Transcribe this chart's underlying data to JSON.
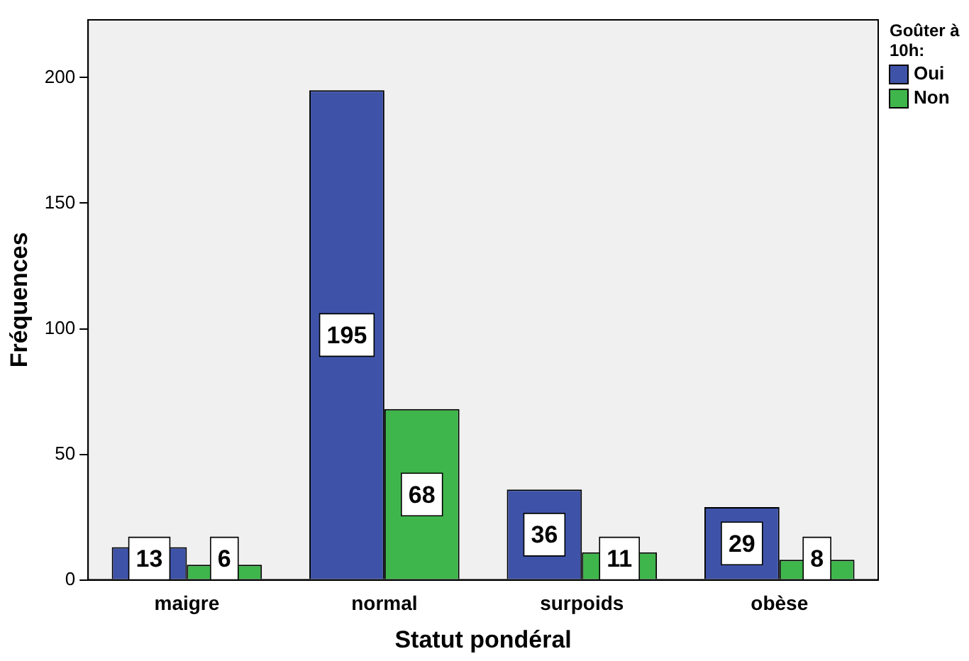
{
  "chart_data": {
    "type": "bar",
    "xlabel": "Statut pondéral",
    "ylabel": "Fréquences",
    "legend_title": "Goûter à 10h:",
    "categories": [
      "maigre",
      "normal",
      "surpoids",
      "obèse"
    ],
    "series": [
      {
        "name": "Oui",
        "color": "#3e53a8",
        "values": [
          13,
          195,
          36,
          29
        ]
      },
      {
        "name": "Non",
        "color": "#3fb64b",
        "values": [
          6,
          68,
          11,
          8
        ]
      }
    ],
    "ylim": [
      0,
      223
    ],
    "yticks": [
      0,
      50,
      100,
      150,
      200
    ],
    "grid": false,
    "legend": "top right",
    "data_labels": true
  }
}
